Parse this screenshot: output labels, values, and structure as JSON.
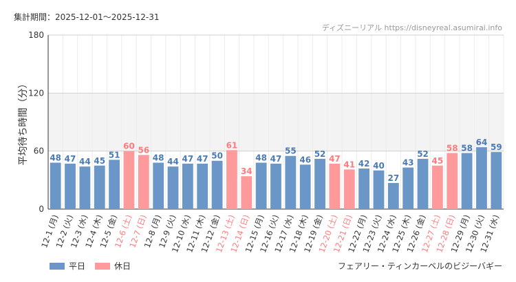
{
  "header": {
    "period": "集計期間：2025-12-01～2025-12-31",
    "source": "ディズニーリアル https://disneyreal.asumirai.info"
  },
  "colors": {
    "weekday": "#6a97c8",
    "holiday": "#ff9a9c",
    "weekday_text": "#4a7ab5",
    "holiday_text": "#ff7b7e",
    "shade": "#f3f3f3"
  },
  "legend": {
    "weekday": "平日",
    "holiday": "休日"
  },
  "attraction": "フェアリー・ティンカーベルのビジーバギー",
  "chart_data": {
    "type": "bar",
    "title": "",
    "ylabel": "平均待ち時間（分）",
    "ylim": [
      0,
      180
    ],
    "yticks": [
      0,
      60,
      120,
      180
    ],
    "shaded_band": [
      60,
      120
    ],
    "categories": [
      "12-1 (月)",
      "12-2 (火)",
      "12-3 (水)",
      "12-4 (木)",
      "12-5 (金)",
      "12-6 (土)",
      "12-7 (日)",
      "12-8 (月)",
      "12-9 (火)",
      "12-10 (水)",
      "12-11 (木)",
      "12-12 (金)",
      "12-13 (土)",
      "12-14 (日)",
      "12-15 (月)",
      "12-16 (火)",
      "12-17 (水)",
      "12-18 (木)",
      "12-19 (金)",
      "12-20 (土)",
      "12-21 (日)",
      "12-22 (月)",
      "12-23 (火)",
      "12-24 (水)",
      "12-25 (木)",
      "12-26 (金)",
      "12-27 (土)",
      "12-28 (日)",
      "12-29 (月)",
      "12-30 (火)",
      "12-31 (水)"
    ],
    "values": [
      48,
      47,
      44,
      45,
      51,
      60,
      56,
      48,
      44,
      47,
      47,
      50,
      61,
      34,
      48,
      47,
      55,
      46,
      52,
      47,
      41,
      42,
      40,
      27,
      43,
      52,
      45,
      58,
      58,
      64,
      59
    ],
    "holiday": [
      false,
      false,
      false,
      false,
      false,
      true,
      true,
      false,
      false,
      false,
      false,
      false,
      true,
      true,
      false,
      false,
      false,
      false,
      false,
      true,
      true,
      false,
      false,
      false,
      false,
      false,
      true,
      true,
      false,
      false,
      false
    ]
  }
}
